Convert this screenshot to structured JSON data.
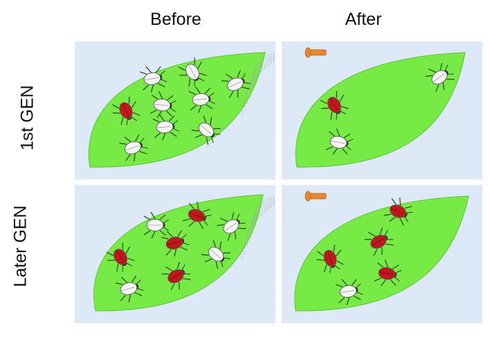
{
  "columns": {
    "before": "Before",
    "after": "After"
  },
  "rows": {
    "first": "1st GEN",
    "later": "Later GEN"
  },
  "colors": {
    "panel_bg": "#dde9f7",
    "leaf": "#77ea45",
    "leaf_edge": "#5cc432",
    "susceptible_bug": "#f4f4f4",
    "resistant_bug": "#c0171d",
    "sprayer": "#e8872e"
  },
  "panels": [
    {
      "id": "first-before",
      "sprayer": true,
      "bugs": [
        {
          "type": "susceptible"
        },
        {
          "type": "susceptible"
        },
        {
          "type": "susceptible"
        },
        {
          "type": "susceptible"
        },
        {
          "type": "susceptible"
        },
        {
          "type": "resistant"
        },
        {
          "type": "susceptible"
        },
        {
          "type": "susceptible"
        },
        {
          "type": "susceptible"
        }
      ]
    },
    {
      "id": "first-after",
      "sprayer": false,
      "bugs": [
        {
          "type": "resistant"
        },
        {
          "type": "susceptible"
        },
        {
          "type": "susceptible"
        }
      ]
    },
    {
      "id": "later-before",
      "sprayer": true,
      "bugs": [
        {
          "type": "susceptible"
        },
        {
          "type": "resistant"
        },
        {
          "type": "susceptible"
        },
        {
          "type": "resistant"
        },
        {
          "type": "resistant"
        },
        {
          "type": "susceptible"
        },
        {
          "type": "resistant"
        },
        {
          "type": "susceptible"
        }
      ]
    },
    {
      "id": "later-after",
      "sprayer": false,
      "bugs": [
        {
          "type": "resistant"
        },
        {
          "type": "resistant"
        },
        {
          "type": "resistant"
        },
        {
          "type": "resistant"
        },
        {
          "type": "susceptible"
        }
      ]
    }
  ]
}
